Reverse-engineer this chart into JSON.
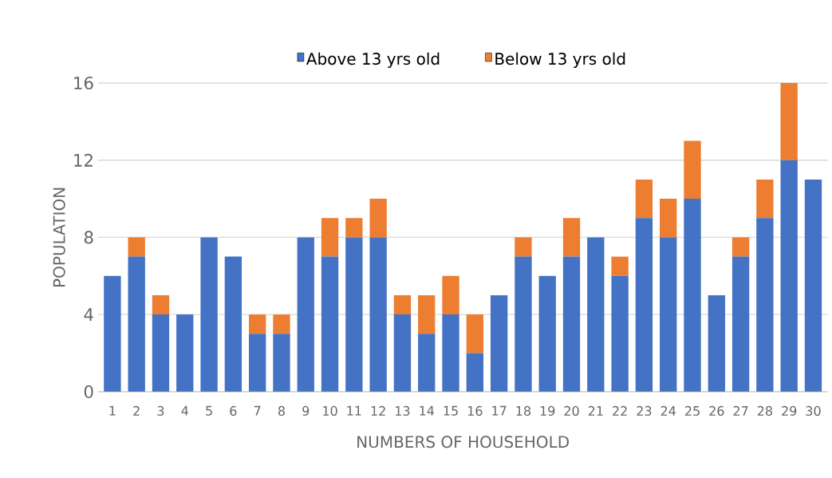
{
  "chart_data": {
    "type": "bar",
    "stacked": true,
    "xlabel": "NUMBERS OF HOUSEHOLD",
    "ylabel": "POPULATION",
    "categories": [
      "1",
      "2",
      "3",
      "4",
      "5",
      "6",
      "7",
      "8",
      "9",
      "10",
      "11",
      "12",
      "13",
      "14",
      "15",
      "16",
      "17",
      "18",
      "19",
      "20",
      "21",
      "22",
      "23",
      "24",
      "25",
      "26",
      "27",
      "28",
      "29",
      "30"
    ],
    "series": [
      {
        "name": "Above 13 yrs old",
        "color": "#4472c4",
        "values": [
          6,
          7,
          4,
          4,
          8,
          7,
          3,
          3,
          8,
          7,
          8,
          8,
          4,
          3,
          4,
          2,
          5,
          7,
          6,
          7,
          8,
          6,
          9,
          8,
          10,
          5,
          7,
          9,
          12,
          11
        ]
      },
      {
        "name": "Below 13 yrs old",
        "color": "#ed7d31",
        "values": [
          0,
          1,
          1,
          0,
          0,
          0,
          1,
          1,
          0,
          2,
          1,
          2,
          1,
          2,
          2,
          2,
          0,
          1,
          0,
          2,
          0,
          1,
          2,
          2,
          3,
          0,
          1,
          2,
          4,
          0
        ]
      }
    ],
    "ylim": [
      0,
      16
    ],
    "yticks": [
      0,
      4,
      8,
      12,
      16
    ],
    "grid": "y",
    "legend": "top"
  }
}
